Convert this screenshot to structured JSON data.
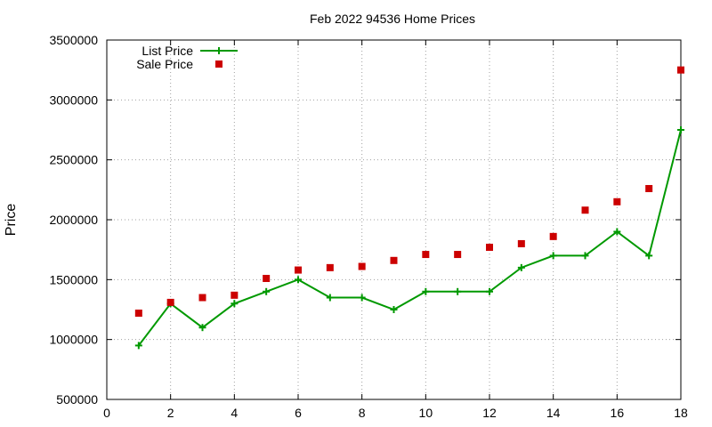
{
  "chart_data": {
    "type": "line",
    "title": "Feb 2022 94536 Home Prices",
    "xlabel": "",
    "ylabel": "Price",
    "xlim": [
      0,
      18
    ],
    "ylim": [
      500000,
      3500000
    ],
    "x_ticks": [
      0,
      2,
      4,
      6,
      8,
      10,
      12,
      14,
      16,
      18
    ],
    "y_ticks": [
      500000,
      1000000,
      1500000,
      2000000,
      2500000,
      3000000,
      3500000
    ],
    "grid": true,
    "legend_position": "top-left",
    "series": [
      {
        "name": "List Price",
        "style": "line-with-plus-markers",
        "color": "#009900",
        "x": [
          1,
          2,
          3,
          4,
          5,
          6,
          7,
          8,
          9,
          10,
          11,
          12,
          13,
          14,
          15,
          16,
          17,
          18
        ],
        "values": [
          950000,
          1300000,
          1100000,
          1300000,
          1400000,
          1500000,
          1350000,
          1350000,
          1250000,
          1400000,
          1400000,
          1400000,
          1600000,
          1700000,
          1700000,
          1900000,
          1700000,
          2750000
        ]
      },
      {
        "name": "Sale Price",
        "style": "square-markers",
        "color": "#cc0000",
        "x": [
          1,
          2,
          3,
          4,
          5,
          6,
          7,
          8,
          9,
          10,
          11,
          12,
          13,
          14,
          15,
          16,
          17,
          18
        ],
        "values": [
          1220000,
          1310000,
          1350000,
          1370000,
          1510000,
          1580000,
          1600000,
          1610000,
          1660000,
          1710000,
          1710000,
          1770000,
          1800000,
          1860000,
          2080000,
          2150000,
          2260000,
          3250000
        ]
      }
    ]
  }
}
